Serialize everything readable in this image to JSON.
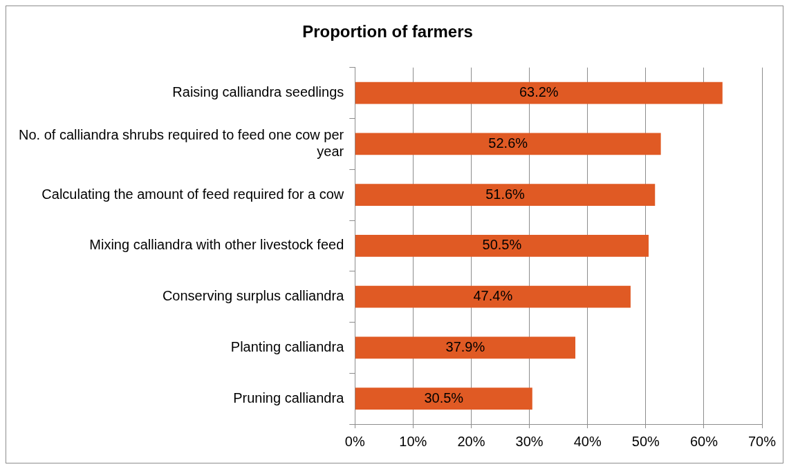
{
  "chart_data": {
    "type": "bar",
    "orientation": "horizontal",
    "title": "Proportion of farmers",
    "categories": [
      "Raising calliandra seedlings",
      "No. of calliandra shrubs required to feed one cow per year",
      "Calculating the amount of feed required for a cow",
      "Mixing calliandra with other livestock feed",
      "Conserving surplus calliandra",
      "Planting calliandra",
      "Pruning calliandra"
    ],
    "values": [
      63.2,
      52.6,
      51.6,
      50.5,
      47.4,
      37.9,
      30.5
    ],
    "value_labels": [
      "63.2%",
      "52.6%",
      "51.6%",
      "50.5%",
      "47.4%",
      "37.9%",
      "30.5%"
    ],
    "color": "#e05a24",
    "xlim": [
      0,
      70
    ],
    "xticks": [
      {
        "value": 0,
        "label": "0%"
      },
      {
        "value": 10,
        "label": "10%"
      },
      {
        "value": 20,
        "label": "20%"
      },
      {
        "value": 30,
        "label": "30%"
      },
      {
        "value": 40,
        "label": "40%"
      },
      {
        "value": 50,
        "label": "50%"
      },
      {
        "value": 60,
        "label": "60%"
      },
      {
        "value": 70,
        "label": "70%"
      }
    ],
    "grid": "x",
    "legend": false
  }
}
